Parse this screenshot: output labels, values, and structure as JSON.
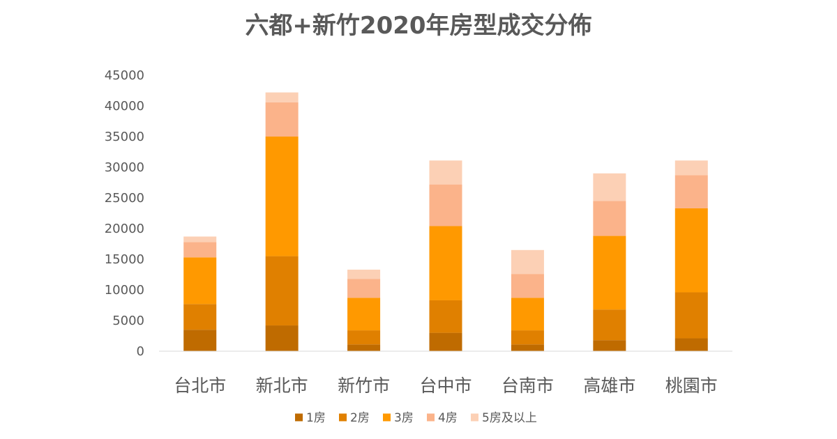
{
  "chart_data": {
    "type": "bar",
    "stacked": true,
    "title": "六都+新竹2020年房型成交分佈",
    "xlabel": "",
    "ylabel": "",
    "ylim": [
      0,
      45000
    ],
    "yticks": [
      0,
      5000,
      10000,
      15000,
      20000,
      25000,
      30000,
      35000,
      40000,
      45000
    ],
    "grid": false,
    "legend_position": "bottom",
    "categories": [
      "台北市",
      "新北市",
      "新竹市",
      "台中市",
      "台南市",
      "高雄市",
      "桃園市"
    ],
    "series": [
      {
        "name": "1房",
        "color": "#BF6B00",
        "values": [
          3500,
          4200,
          1100,
          3000,
          1100,
          1800,
          2100
        ]
      },
      {
        "name": "2房",
        "color": "#E08000",
        "values": [
          4200,
          11300,
          2300,
          5300,
          2300,
          5000,
          7500
        ]
      },
      {
        "name": "3房",
        "color": "#FF9900",
        "values": [
          7600,
          19500,
          5300,
          12100,
          5300,
          12000,
          13700
        ]
      },
      {
        "name": "4房",
        "color": "#FBB38A",
        "values": [
          2500,
          5600,
          3100,
          6800,
          3900,
          5700,
          5400
        ]
      },
      {
        "name": "5房及以上",
        "color": "#FCD0B5",
        "values": [
          900,
          1600,
          1500,
          3900,
          3900,
          4500,
          2400
        ]
      }
    ]
  }
}
